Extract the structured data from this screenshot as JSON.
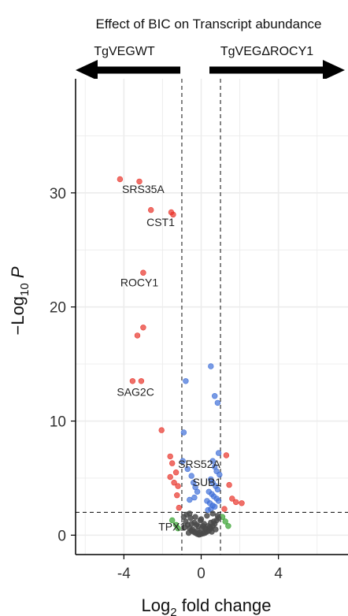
{
  "chart_data": {
    "type": "scatter",
    "title": "Effect of BIC on Transcript abundance",
    "xlabel": "Log",
    "xlabel_sub": "2",
    "xlabel_rest": " fold change",
    "ylabel": "−Log",
    "ylabel_sub": "10",
    "ylabel_rest": " P",
    "xlim": [
      -6.5,
      7.6
    ],
    "ylim": [
      -1.7,
      40
    ],
    "x_ticks": [
      -4,
      0,
      4
    ],
    "y_ticks": [
      0,
      10,
      20,
      30
    ],
    "grid": true,
    "direction_left": "TgVEGWT",
    "direction_right": "TgVEGΔROCY1",
    "fc_cutoff": 1,
    "p_cutoff": 2,
    "colors": {
      "sig_both": "#e8332a",
      "sig_p": "#3f6fd8",
      "sig_fc": "#33a02c",
      "ns": "#4a4a4a"
    },
    "series": [
      {
        "group": "sig_both",
        "x": [
          -4.2,
          -3.0,
          -3.2,
          -2.6,
          -1.55,
          -1.45,
          -3.0,
          -3.3,
          -3.55,
          -2.05,
          -1.6,
          -3.1,
          -1.5,
          -1.3,
          -1.6,
          -1.4,
          -1.2,
          -1.25,
          -1.15,
          1.3,
          1.45,
          1.6,
          1.8,
          2.1,
          1.2
        ],
        "y": [
          31.2,
          23.0,
          31.0,
          28.5,
          28.3,
          28.1,
          18.2,
          17.5,
          13.5,
          9.2,
          6.9,
          13.5,
          6.3,
          5.5,
          5.1,
          4.6,
          4.3,
          3.5,
          2.4,
          7.0,
          4.4,
          3.2,
          2.9,
          2.8,
          2.3
        ]
      },
      {
        "group": "sig_p",
        "x": [
          -0.8,
          -0.9,
          -0.95,
          -0.7,
          -0.5,
          -0.4,
          -0.3,
          -0.2,
          0.5,
          0.7,
          0.85,
          0.9,
          0.6,
          0.7,
          0.8,
          0.95,
          0.5,
          0.6,
          0.75,
          0.85,
          0.4,
          0.55,
          0.65,
          0.8,
          0.9,
          0.45,
          0.6,
          0.7,
          0.5,
          0.35,
          -0.6,
          -0.35,
          0.3
        ],
        "y": [
          13.5,
          9.0,
          6.5,
          5.8,
          5.2,
          4.6,
          4.2,
          3.8,
          14.8,
          12.2,
          11.6,
          7.2,
          6.5,
          6.0,
          5.6,
          5.3,
          4.9,
          4.6,
          4.3,
          4.0,
          3.8,
          3.6,
          3.4,
          3.2,
          3.0,
          2.8,
          2.6,
          2.5,
          2.3,
          2.2,
          3.1,
          3.3,
          3.0
        ]
      },
      {
        "group": "sig_fc",
        "x": [
          -1.5,
          -1.3,
          -1.2,
          1.1,
          1.25,
          1.4
        ],
        "y": [
          1.3,
          0.9,
          0.6,
          1.6,
          1.2,
          0.8
        ]
      },
      {
        "group": "ns",
        "x": [
          -0.9,
          -0.8,
          -0.7,
          -0.6,
          -0.5,
          -0.4,
          -0.3,
          -0.2,
          -0.1,
          0.0,
          0.1,
          0.2,
          0.3,
          0.4,
          0.5,
          0.6,
          0.7,
          0.8,
          0.9,
          -0.75,
          -0.55,
          -0.35,
          -0.15,
          0.05,
          0.25,
          0.45,
          0.65,
          0.85,
          -0.65,
          -0.45,
          -0.25,
          -0.05,
          0.15,
          0.35,
          0.55,
          0.75,
          -0.85,
          -0.6,
          -0.3,
          0.0,
          0.3,
          0.6,
          -0.5,
          -0.2,
          0.2,
          0.5,
          -0.1,
          0.1
        ],
        "y": [
          1.6,
          1.2,
          0.9,
          0.6,
          0.4,
          0.3,
          0.2,
          0.1,
          0.05,
          0.1,
          0.15,
          0.2,
          0.3,
          0.4,
          0.6,
          0.8,
          1.0,
          1.3,
          1.5,
          1.8,
          1.5,
          1.1,
          0.8,
          0.6,
          0.5,
          0.7,
          1.2,
          1.7,
          0.2,
          0.5,
          0.9,
          1.3,
          1.0,
          0.8,
          0.3,
          0.5,
          0.7,
          1.9,
          1.6,
          1.4,
          1.7,
          1.9,
          1.0,
          0.4,
          0.6,
          1.1,
          0.2,
          0.8
        ]
      }
    ],
    "annotations": [
      {
        "label": "SRS35A",
        "x": -3.0,
        "y": 30.0,
        "anchor": "middle"
      },
      {
        "label": "CST1",
        "x": -2.1,
        "y": 27.1,
        "anchor": "middle"
      },
      {
        "label": "ROCY1",
        "x": -3.2,
        "y": 21.8,
        "anchor": "middle"
      },
      {
        "label": "SAG2C",
        "x": -3.4,
        "y": 12.2,
        "anchor": "middle"
      },
      {
        "label": "SRS52A",
        "x": -0.1,
        "y": 5.9,
        "anchor": "middle"
      },
      {
        "label": "SUB1",
        "x": 0.3,
        "y": 4.3,
        "anchor": "middle"
      },
      {
        "label": "TPX1",
        "x": -1.5,
        "y": 0.4,
        "anchor": "middle"
      }
    ]
  }
}
